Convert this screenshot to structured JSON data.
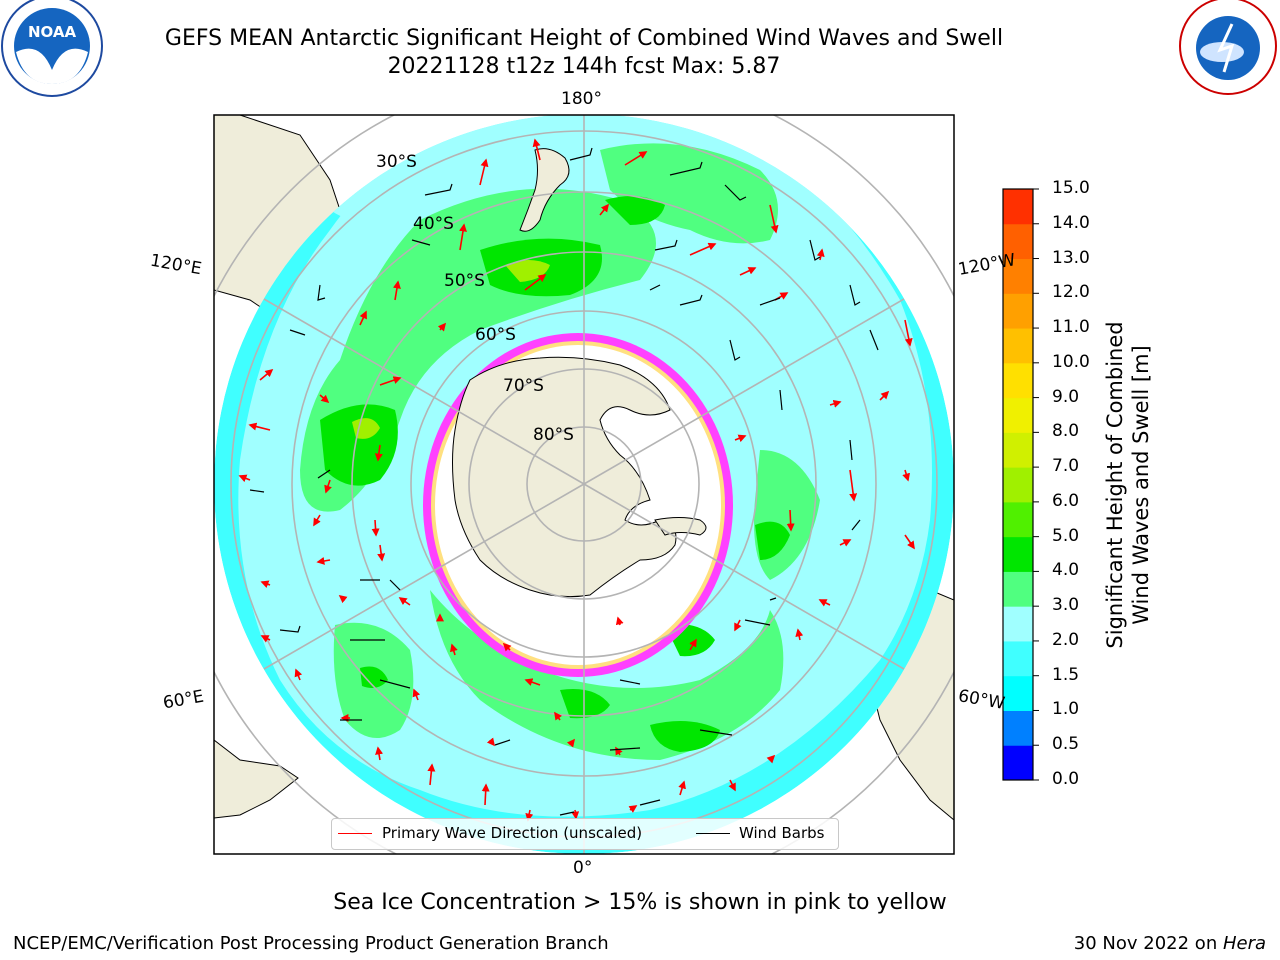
{
  "title": {
    "line1": "GEFS MEAN Antarctic Significant Height of Combined Wind Waves and Swell",
    "line2": "20221128 t12z 144h fcst   Max: 5.87"
  },
  "logos": {
    "left_name": "NOAA",
    "right_name": "NATIONAL WEATHER SERVICE"
  },
  "map": {
    "longitude_labels": [
      "180°",
      "120°E",
      "120°W",
      "60°E",
      "60°W",
      "0°"
    ],
    "latitude_labels": [
      "30°S",
      "40°S",
      "50°S",
      "60°S",
      "70°S",
      "80°S"
    ]
  },
  "colorbar": {
    "label_line1": "Significant Height of Combined",
    "label_line2": "Wind Waves and Swell [m]",
    "ticks": [
      "15.0",
      "14.0",
      "13.0",
      "12.0",
      "11.0",
      "10.0",
      "9.0",
      "8.0",
      "7.0",
      "6.0",
      "5.0",
      "4.0",
      "3.0",
      "2.0",
      "1.5",
      "1.0",
      "0.5",
      "0.0"
    ],
    "colors_bottom_to_top": [
      "#0000ff",
      "#0080ff",
      "#00ffff",
      "#40ffff",
      "#a0ffff",
      "#50ff80",
      "#00e600",
      "#50f000",
      "#a0f000",
      "#d0f000",
      "#f0f000",
      "#ffe000",
      "#ffc000",
      "#ffa000",
      "#ff8000",
      "#ff6000",
      "#ff3000"
    ]
  },
  "legend": {
    "wave_direction": "Primary Wave Direction (unscaled)",
    "wind_barbs": "Wind Barbs",
    "wave_color": "#ff0000",
    "barb_color": "#000000"
  },
  "caption": "Sea Ice Concentration > 15% is shown in pink to yellow",
  "footer": {
    "left": "NCEP/EMC/Verification Post Processing Product Generation Branch",
    "right_date": "30 Nov 2022 on ",
    "right_machine": "Hera"
  }
}
